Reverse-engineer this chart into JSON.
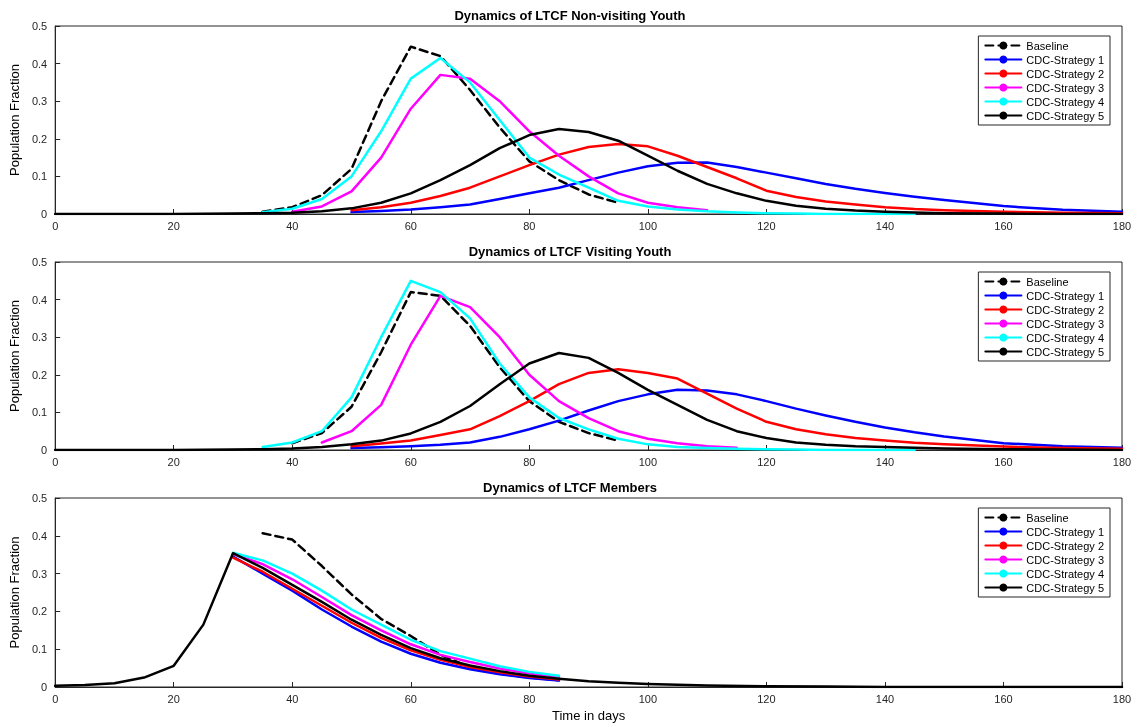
{
  "chart_data": [
    {
      "type": "line",
      "title": "Dynamics of LTCF Non-visiting Youth",
      "ylabel": "Population Fraction",
      "xlim": [
        0,
        180
      ],
      "xticks": [
        0,
        20,
        40,
        60,
        80,
        100,
        120,
        140,
        160,
        180
      ],
      "ylim": [
        0,
        0.5
      ],
      "yticks": [
        0,
        0.1,
        0.2,
        0.3,
        0.4,
        0.5
      ],
      "grid": false,
      "legend": "top right",
      "marker": "none",
      "x": [
        0,
        10,
        20,
        30,
        35,
        40,
        45,
        50,
        55,
        60,
        65,
        70,
        75,
        80,
        85,
        90,
        95,
        100,
        105,
        110,
        115,
        120,
        125,
        130,
        135,
        140,
        145,
        150,
        160,
        170,
        180
      ],
      "series": [
        {
          "name": "Baseline",
          "color": "#000000",
          "line_style": "dashed",
          "values": [
            null,
            null,
            null,
            null,
            0.006,
            0.018,
            0.05,
            0.12,
            0.3,
            0.445,
            0.42,
            0.33,
            0.23,
            0.14,
            0.09,
            0.052,
            0.03,
            null,
            null,
            null,
            null,
            null,
            null,
            null,
            null,
            null,
            null,
            null,
            null,
            null,
            null
          ]
        },
        {
          "name": "CDC-Strategy 1",
          "color": "#0000ff",
          "line_style": "solid",
          "values": [
            null,
            null,
            null,
            null,
            null,
            null,
            null,
            0.005,
            0.008,
            0.012,
            0.018,
            0.025,
            0.04,
            0.055,
            0.07,
            0.09,
            0.11,
            0.127,
            0.136,
            0.137,
            0.125,
            0.11,
            0.095,
            0.08,
            0.067,
            0.056,
            0.046,
            0.037,
            0.021,
            0.011,
            0.006
          ]
        },
        {
          "name": "CDC-Strategy 2",
          "color": "#ff0000",
          "line_style": "solid",
          "values": [
            null,
            null,
            null,
            null,
            null,
            null,
            null,
            0.01,
            0.018,
            0.03,
            0.048,
            0.07,
            0.1,
            0.13,
            0.158,
            0.178,
            0.186,
            0.18,
            0.155,
            0.125,
            0.095,
            0.062,
            0.045,
            0.033,
            0.025,
            0.018,
            0.013,
            0.01,
            0.006,
            0.003,
            0.002
          ]
        },
        {
          "name": "CDC-Strategy 3",
          "color": "#ff00ff",
          "line_style": "solid",
          "values": [
            null,
            null,
            null,
            null,
            null,
            0.006,
            0.02,
            0.06,
            0.15,
            0.28,
            0.37,
            0.36,
            0.3,
            0.22,
            0.155,
            0.1,
            0.055,
            0.03,
            0.018,
            0.01,
            null,
            null,
            null,
            null,
            null,
            null,
            null,
            null,
            null,
            null,
            null
          ]
        },
        {
          "name": "CDC-Strategy 4",
          "color": "#00ffff",
          "line_style": "solid",
          "values": [
            null,
            null,
            null,
            null,
            0.005,
            0.014,
            0.04,
            0.1,
            0.22,
            0.36,
            0.415,
            0.35,
            0.25,
            0.15,
            0.105,
            0.07,
            0.035,
            0.02,
            0.012,
            0.007,
            0.004,
            0.002,
            0.001,
            0,
            0,
            0,
            0,
            null,
            null,
            null,
            null
          ]
        },
        {
          "name": "CDC-Strategy 5",
          "color": "#000000",
          "line_style": "solid",
          "values": [
            0,
            0,
            0,
            0.001,
            0.002,
            0.003,
            0.007,
            0.015,
            0.03,
            0.055,
            0.09,
            0.13,
            0.175,
            0.21,
            0.226,
            0.218,
            0.195,
            0.155,
            0.115,
            0.08,
            0.055,
            0.035,
            0.022,
            0.014,
            0.009,
            0.006,
            0.004,
            0.002,
            0.001,
            0,
            0
          ]
        }
      ]
    },
    {
      "type": "line",
      "title": "Dynamics of LTCF Visiting Youth",
      "ylabel": "Population Fraction",
      "xlim": [
        0,
        180
      ],
      "xticks": [
        0,
        20,
        40,
        60,
        80,
        100,
        120,
        140,
        160,
        180
      ],
      "ylim": [
        0,
        0.5
      ],
      "yticks": [
        0,
        0.1,
        0.2,
        0.3,
        0.4,
        0.5
      ],
      "grid": false,
      "legend": "top right",
      "marker": "none",
      "x": [
        0,
        10,
        20,
        30,
        35,
        40,
        45,
        50,
        55,
        60,
        65,
        70,
        75,
        80,
        85,
        90,
        95,
        100,
        105,
        110,
        115,
        120,
        125,
        130,
        135,
        140,
        145,
        150,
        160,
        170,
        180
      ],
      "series": [
        {
          "name": "Baseline",
          "color": "#000000",
          "line_style": "dashed",
          "values": [
            null,
            null,
            null,
            null,
            null,
            0.018,
            0.045,
            0.115,
            0.26,
            0.42,
            0.41,
            0.33,
            0.22,
            0.13,
            0.075,
            0.045,
            0.025,
            null,
            null,
            null,
            null,
            null,
            null,
            null,
            null,
            null,
            null,
            null,
            null,
            null,
            null
          ]
        },
        {
          "name": "CDC-Strategy 1",
          "color": "#0000ff",
          "line_style": "solid",
          "values": [
            null,
            null,
            null,
            null,
            null,
            null,
            null,
            0.005,
            0.007,
            0.01,
            0.014,
            0.02,
            0.035,
            0.055,
            0.078,
            0.105,
            0.13,
            0.148,
            0.16,
            0.158,
            0.148,
            0.13,
            0.11,
            0.092,
            0.075,
            0.06,
            0.047,
            0.036,
            0.018,
            0.01,
            0.006
          ]
        },
        {
          "name": "CDC-Strategy 2",
          "color": "#ff0000",
          "line_style": "solid",
          "values": [
            null,
            null,
            null,
            null,
            null,
            null,
            null,
            0.01,
            0.017,
            0.025,
            0.04,
            0.055,
            0.09,
            0.13,
            0.175,
            0.205,
            0.215,
            0.205,
            0.19,
            0.15,
            0.11,
            0.075,
            0.055,
            0.042,
            0.032,
            0.025,
            0.019,
            0.015,
            0.009,
            0.005,
            0.003
          ]
        },
        {
          "name": "CDC-Strategy 3",
          "color": "#ff00ff",
          "line_style": "solid",
          "values": [
            null,
            null,
            null,
            null,
            null,
            null,
            0.02,
            0.05,
            0.12,
            0.28,
            0.41,
            0.38,
            0.3,
            0.2,
            0.13,
            0.085,
            0.05,
            0.03,
            0.018,
            0.01,
            0.006,
            null,
            null,
            null,
            null,
            null,
            null,
            null,
            null,
            null,
            null
          ]
        },
        {
          "name": "CDC-Strategy 4",
          "color": "#00ffff",
          "line_style": "solid",
          "values": [
            null,
            null,
            null,
            null,
            0.008,
            0.02,
            0.05,
            0.14,
            0.3,
            0.45,
            0.42,
            0.35,
            0.23,
            0.14,
            0.085,
            0.055,
            0.03,
            0.015,
            0.008,
            0.005,
            0.003,
            0.002,
            0.001,
            0,
            0,
            0,
            0,
            null,
            null,
            null,
            null
          ]
        },
        {
          "name": "CDC-Strategy 5",
          "color": "#000000",
          "line_style": "solid",
          "values": [
            0,
            0,
            0,
            0.001,
            0.002,
            0.004,
            0.008,
            0.015,
            0.025,
            0.044,
            0.075,
            0.117,
            0.175,
            0.23,
            0.258,
            0.245,
            0.205,
            0.16,
            0.12,
            0.08,
            0.05,
            0.032,
            0.02,
            0.014,
            0.01,
            0.008,
            0.006,
            0.004,
            0.002,
            0.001,
            0
          ]
        }
      ]
    },
    {
      "type": "line",
      "title": "Dynamics of LTCF Members",
      "xlabel": "Time in days",
      "ylabel": "Population Fraction",
      "xlim": [
        0,
        180
      ],
      "xticks": [
        0,
        20,
        40,
        60,
        80,
        100,
        120,
        140,
        160,
        180
      ],
      "ylim": [
        0,
        0.5
      ],
      "yticks": [
        0,
        0.1,
        0.2,
        0.3,
        0.4,
        0.5
      ],
      "grid": false,
      "legend": "top right",
      "marker": "none",
      "x": [
        0,
        5,
        10,
        15,
        20,
        25,
        30,
        35,
        40,
        45,
        50,
        55,
        60,
        65,
        70,
        75,
        80,
        85,
        90,
        95,
        100,
        110,
        120,
        130,
        140,
        150,
        160,
        170,
        180
      ],
      "series": [
        {
          "name": "Baseline",
          "color": "#000000",
          "line_style": "dashed",
          "values": [
            null,
            null,
            null,
            null,
            null,
            null,
            null,
            0.407,
            0.39,
            0.32,
            0.245,
            0.18,
            0.135,
            0.085,
            0.052,
            0.035,
            0.025,
            0.018,
            null,
            null,
            null,
            null,
            null,
            null,
            null,
            null,
            null,
            null,
            null
          ]
        },
        {
          "name": "CDC-Strategy 1",
          "color": "#0000ff",
          "line_style": "solid",
          "values": [
            null,
            null,
            null,
            null,
            null,
            null,
            0.345,
            0.3,
            0.255,
            0.205,
            0.16,
            0.12,
            0.088,
            0.064,
            0.047,
            0.034,
            0.024,
            0.017,
            null,
            null,
            null,
            null,
            null,
            null,
            null,
            null,
            null,
            null,
            null
          ]
        },
        {
          "name": "CDC-Strategy 2",
          "color": "#ff0000",
          "line_style": "solid",
          "values": [
            null,
            null,
            null,
            null,
            null,
            null,
            0.342,
            0.305,
            0.26,
            0.215,
            0.17,
            0.13,
            0.097,
            0.072,
            0.053,
            0.039,
            0.028,
            0.02,
            null,
            null,
            null,
            null,
            null,
            null,
            null,
            null,
            null,
            null,
            null
          ]
        },
        {
          "name": "CDC-Strategy 3",
          "color": "#ff00ff",
          "line_style": "solid",
          "values": [
            null,
            null,
            null,
            null,
            null,
            null,
            0.352,
            0.325,
            0.285,
            0.238,
            0.19,
            0.15,
            0.113,
            0.085,
            0.066,
            0.049,
            0.036,
            0.027,
            null,
            null,
            null,
            null,
            null,
            null,
            null,
            null,
            null,
            null,
            null
          ]
        },
        {
          "name": "CDC-Strategy 4",
          "color": "#00ffff",
          "line_style": "solid",
          "values": [
            null,
            null,
            null,
            null,
            null,
            null,
            0.355,
            0.335,
            0.3,
            0.255,
            0.205,
            0.165,
            0.125,
            0.095,
            0.075,
            0.055,
            0.04,
            0.03,
            null,
            null,
            null,
            null,
            null,
            null,
            null,
            null,
            null,
            null,
            null
          ]
        },
        {
          "name": "CDC-Strategy 5",
          "color": "#000000",
          "line_style": "solid",
          "values": [
            0.003,
            0.005,
            0.01,
            0.025,
            0.056,
            0.165,
            0.354,
            0.315,
            0.27,
            0.225,
            0.178,
            0.138,
            0.103,
            0.076,
            0.057,
            0.042,
            0.03,
            0.022,
            0.015,
            0.011,
            0.008,
            0.004,
            0.002,
            0.001,
            0,
            0,
            0,
            0,
            0
          ]
        }
      ]
    }
  ]
}
